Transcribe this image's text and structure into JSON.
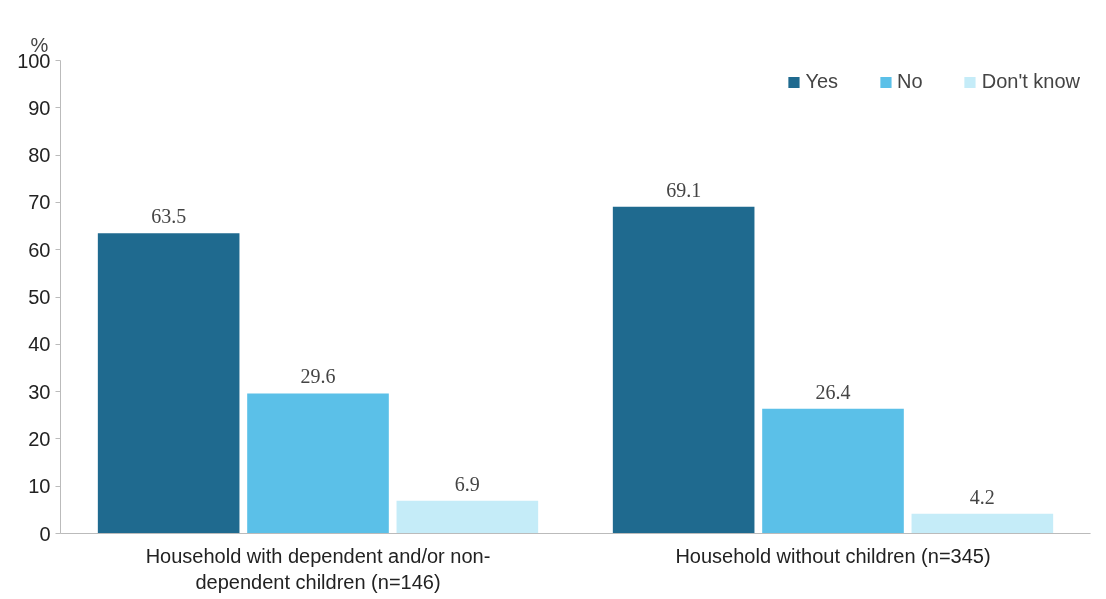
{
  "chart_data": {
    "type": "bar",
    "ylabel": "%",
    "categories": [
      "Household with dependent and/or non-\ndependent children (n=146)",
      "Household without children (n=345)"
    ],
    "series": [
      {
        "name": "Yes",
        "color": "#1f6a8f",
        "values": [
          63.5,
          69.1
        ]
      },
      {
        "name": "No",
        "color": "#5bc0e8",
        "values": [
          29.6,
          26.4
        ]
      },
      {
        "name": "Don't know",
        "color": "#c5ecf8",
        "values": [
          6.9,
          4.2
        ]
      }
    ],
    "ylim": [
      0,
      100
    ],
    "yticks": [
      0,
      10,
      20,
      30,
      40,
      50,
      60,
      70,
      80,
      90,
      100
    ],
    "grid": false,
    "legend": "top right",
    "data_labels": true
  }
}
